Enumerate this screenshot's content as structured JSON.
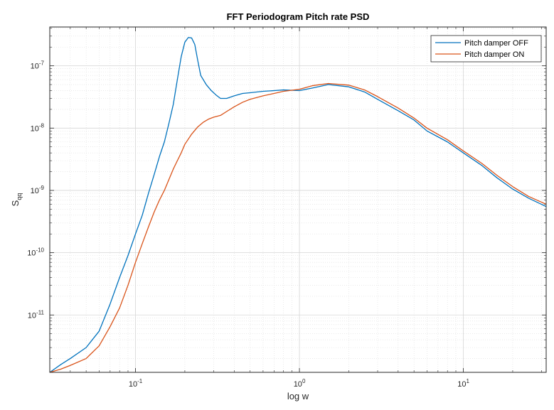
{
  "chart_data": {
    "type": "line",
    "title": "FFT Periodogram Pitch rate PSD",
    "xlabel": "log w",
    "ylabel_main": "S",
    "ylabel_sub": "qq",
    "xscale": "log",
    "yscale": "log",
    "xlim": [
      0.03,
      32
    ],
    "ylim": [
      1.2e-12,
      4.2e-07
    ],
    "grid": true,
    "minor_grid": true,
    "legend_position": "top-right",
    "x_ticks": [
      {
        "value": 0.1,
        "base": "10",
        "exp": "-1"
      },
      {
        "value": 1,
        "base": "10",
        "exp": "0"
      },
      {
        "value": 10,
        "base": "10",
        "exp": "1"
      }
    ],
    "y_ticks": [
      {
        "value": 1e-11,
        "base": "10",
        "exp": "-11"
      },
      {
        "value": 1e-10,
        "base": "10",
        "exp": "-10"
      },
      {
        "value": 1e-09,
        "base": "10",
        "exp": "-9"
      },
      {
        "value": 1e-08,
        "base": "10",
        "exp": "-8"
      },
      {
        "value": 1e-07,
        "base": "10",
        "exp": "-7"
      }
    ],
    "series": [
      {
        "name": "Pitch damper OFF",
        "color": "#0072BD",
        "x": [
          0.03,
          0.035,
          0.04,
          0.05,
          0.06,
          0.07,
          0.08,
          0.09,
          0.1,
          0.11,
          0.12,
          0.13,
          0.14,
          0.15,
          0.16,
          0.17,
          0.18,
          0.19,
          0.2,
          0.21,
          0.22,
          0.23,
          0.24,
          0.25,
          0.27,
          0.29,
          0.31,
          0.33,
          0.36,
          0.4,
          0.45,
          0.5,
          0.6,
          0.7,
          0.8,
          1.0,
          1.2,
          1.5,
          2.0,
          2.5,
          3.0,
          4.0,
          5.0,
          6.0,
          8.0,
          10.0,
          13.0,
          16.0,
          20.0,
          25.0,
          32.0
        ],
        "y": [
          1.2e-12,
          1.6e-12,
          2e-12,
          3e-12,
          5.5e-12,
          1.5e-11,
          4e-11,
          9e-11,
          2e-10,
          4e-10,
          9e-10,
          1.8e-09,
          3.5e-09,
          6e-09,
          1.2e-08,
          2.4e-08,
          6e-08,
          1.4e-07,
          2.4e-07,
          2.85e-07,
          2.8e-07,
          2.2e-07,
          1.2e-07,
          7e-08,
          5e-08,
          4e-08,
          3.4e-08,
          3e-08,
          3e-08,
          3.3e-08,
          3.6e-08,
          3.7e-08,
          3.9e-08,
          4e-08,
          4.1e-08,
          4e-08,
          4.4e-08,
          5e-08,
          4.6e-08,
          3.8e-08,
          2.9e-08,
          1.9e-08,
          1.35e-08,
          9e-09,
          6e-09,
          4e-09,
          2.5e-09,
          1.6e-09,
          1.05e-09,
          7.5e-10,
          5.5e-10
        ]
      },
      {
        "name": "Pitch damper ON",
        "color": "#D95319",
        "x": [
          0.03,
          0.035,
          0.04,
          0.05,
          0.06,
          0.07,
          0.08,
          0.09,
          0.1,
          0.11,
          0.12,
          0.13,
          0.14,
          0.15,
          0.16,
          0.17,
          0.18,
          0.19,
          0.2,
          0.22,
          0.24,
          0.26,
          0.28,
          0.3,
          0.33,
          0.36,
          0.4,
          0.45,
          0.5,
          0.6,
          0.7,
          0.8,
          1.0,
          1.2,
          1.5,
          2.0,
          2.5,
          3.0,
          4.0,
          5.0,
          6.0,
          8.0,
          10.0,
          13.0,
          16.0,
          20.0,
          25.0,
          32.0
        ],
        "y": [
          1.2e-12,
          1.35e-12,
          1.55e-12,
          2e-12,
          3.2e-12,
          6.5e-12,
          1.3e-11,
          3e-11,
          7e-11,
          1.4e-10,
          2.6e-10,
          4.5e-10,
          7e-10,
          1e-09,
          1.5e-09,
          2.2e-09,
          3e-09,
          4e-09,
          5.5e-09,
          8e-09,
          1.05e-08,
          1.25e-08,
          1.4e-08,
          1.5e-08,
          1.6e-08,
          1.85e-08,
          2.2e-08,
          2.6e-08,
          2.9e-08,
          3.3e-08,
          3.6e-08,
          3.9e-08,
          4.2e-08,
          4.8e-08,
          5.2e-08,
          4.9e-08,
          4.1e-08,
          3.2e-08,
          2.1e-08,
          1.45e-08,
          1e-08,
          6.5e-09,
          4.3e-09,
          2.7e-09,
          1.75e-09,
          1.15e-09,
          8e-10,
          6e-10
        ]
      }
    ]
  }
}
